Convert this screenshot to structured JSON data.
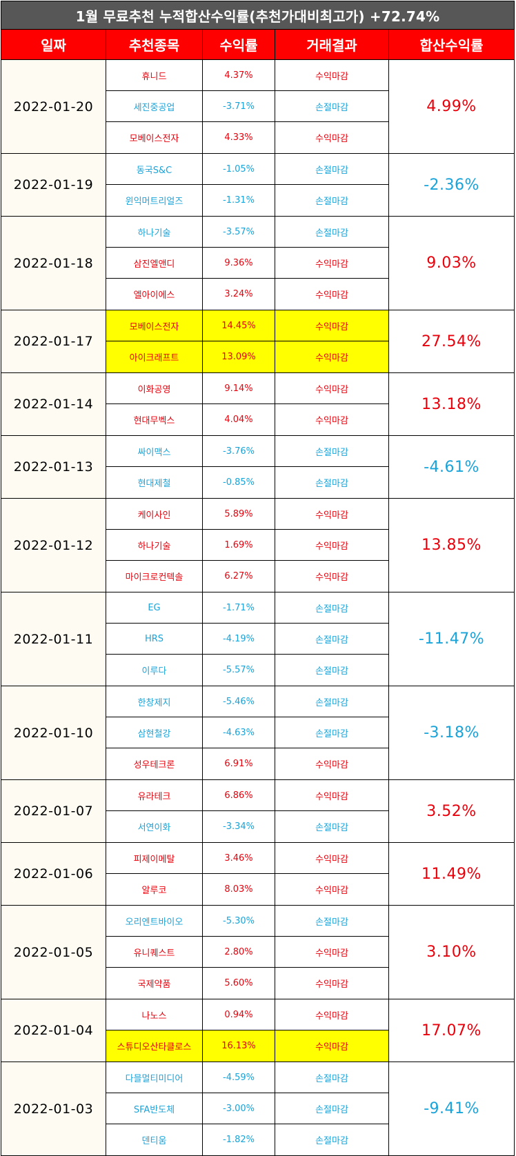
{
  "title": "1월 무료추천 누적합산수익률(추천가대비최고가) +72.74%",
  "headers": {
    "date": "일짜",
    "name": "추천종목",
    "rate": "수익률",
    "result": "거래결과",
    "total": "합산수익률"
  },
  "colors": {
    "title_bg": "#575757",
    "header_bg": "#ff0000",
    "positive": "#e8000b",
    "negative": "#1aa3d9",
    "highlight": "#ffff00",
    "date_bg": "#fefcf2"
  },
  "groups": [
    {
      "date": "2022-01-20",
      "total": "4.99%",
      "total_sign": "pos",
      "rows": [
        {
          "name": "휴니드",
          "rate": "4.37%",
          "result": "수익마감",
          "sign": "pos",
          "hl": false
        },
        {
          "name": "세진중공업",
          "rate": "-3.71%",
          "result": "손절마감",
          "sign": "neg",
          "hl": false
        },
        {
          "name": "모베이스전자",
          "rate": "4.33%",
          "result": "수익마감",
          "sign": "pos",
          "hl": false
        }
      ]
    },
    {
      "date": "2022-01-19",
      "total": "-2.36%",
      "total_sign": "neg",
      "rows": [
        {
          "name": "동국S&C",
          "rate": "-1.05%",
          "result": "손절마감",
          "sign": "neg",
          "hl": false
        },
        {
          "name": "윈익머트리얼즈",
          "rate": "-1.31%",
          "result": "손절마감",
          "sign": "neg",
          "hl": false
        }
      ]
    },
    {
      "date": "2022-01-18",
      "total": "9.03%",
      "total_sign": "pos",
      "rows": [
        {
          "name": "하나기술",
          "rate": "-3.57%",
          "result": "손절마감",
          "sign": "neg",
          "hl": false
        },
        {
          "name": "삼진엘앤디",
          "rate": "9.36%",
          "result": "수익마감",
          "sign": "pos",
          "hl": false
        },
        {
          "name": "엘아이에스",
          "rate": "3.24%",
          "result": "수익마감",
          "sign": "pos",
          "hl": false
        }
      ]
    },
    {
      "date": "2022-01-17",
      "total": "27.54%",
      "total_sign": "pos",
      "rows": [
        {
          "name": "모베이스전자",
          "rate": "14.45%",
          "result": "수익마감",
          "sign": "pos",
          "hl": true
        },
        {
          "name": "아이크래프트",
          "rate": "13.09%",
          "result": "수익마감",
          "sign": "pos",
          "hl": true
        }
      ]
    },
    {
      "date": "2022-01-14",
      "total": "13.18%",
      "total_sign": "pos",
      "rows": [
        {
          "name": "이화공영",
          "rate": "9.14%",
          "result": "수익마감",
          "sign": "pos",
          "hl": false
        },
        {
          "name": "현대무벡스",
          "rate": "4.04%",
          "result": "수익마감",
          "sign": "pos",
          "hl": false
        }
      ]
    },
    {
      "date": "2022-01-13",
      "total": "-4.61%",
      "total_sign": "neg",
      "rows": [
        {
          "name": "싸이맥스",
          "rate": "-3.76%",
          "result": "손절마감",
          "sign": "neg",
          "hl": false
        },
        {
          "name": "현대제철",
          "rate": "-0.85%",
          "result": "손절마감",
          "sign": "neg",
          "hl": false
        }
      ]
    },
    {
      "date": "2022-01-12",
      "total": "13.85%",
      "total_sign": "pos",
      "rows": [
        {
          "name": "케이사인",
          "rate": "5.89%",
          "result": "수익마감",
          "sign": "pos",
          "hl": false
        },
        {
          "name": "하나기술",
          "rate": "1.69%",
          "result": "수익마감",
          "sign": "pos",
          "hl": false
        },
        {
          "name": "마이크로컨텍솔",
          "rate": "6.27%",
          "result": "수익마감",
          "sign": "pos",
          "hl": false
        }
      ]
    },
    {
      "date": "2022-01-11",
      "total": "-11.47%",
      "total_sign": "neg",
      "rows": [
        {
          "name": "EG",
          "rate": "-1.71%",
          "result": "손절마감",
          "sign": "neg",
          "hl": false
        },
        {
          "name": "HRS",
          "rate": "-4.19%",
          "result": "손절마감",
          "sign": "neg",
          "hl": false
        },
        {
          "name": "이루다",
          "rate": "-5.57%",
          "result": "손절마감",
          "sign": "neg",
          "hl": false
        }
      ]
    },
    {
      "date": "2022-01-10",
      "total": "-3.18%",
      "total_sign": "neg",
      "rows": [
        {
          "name": "한창제지",
          "rate": "-5.46%",
          "result": "손절마감",
          "sign": "neg",
          "hl": false
        },
        {
          "name": "삼현철강",
          "rate": "-4.63%",
          "result": "손절마감",
          "sign": "neg",
          "hl": false
        },
        {
          "name": "성우테크론",
          "rate": "6.91%",
          "result": "수익마감",
          "sign": "pos",
          "hl": false
        }
      ]
    },
    {
      "date": "2022-01-07",
      "total": "3.52%",
      "total_sign": "pos",
      "rows": [
        {
          "name": "유라테크",
          "rate": "6.86%",
          "result": "수익마감",
          "sign": "pos",
          "hl": false
        },
        {
          "name": "서연이화",
          "rate": "-3.34%",
          "result": "손절마감",
          "sign": "neg",
          "hl": false
        }
      ]
    },
    {
      "date": "2022-01-06",
      "total": "11.49%",
      "total_sign": "pos",
      "rows": [
        {
          "name": "피제이메탈",
          "rate": "3.46%",
          "result": "수익마감",
          "sign": "pos",
          "hl": false
        },
        {
          "name": "알루코",
          "rate": "8.03%",
          "result": "수익마감",
          "sign": "pos",
          "hl": false
        }
      ]
    },
    {
      "date": "2022-01-05",
      "total": "3.10%",
      "total_sign": "pos",
      "rows": [
        {
          "name": "오리엔트바이오",
          "rate": "-5.30%",
          "result": "손절마감",
          "sign": "neg",
          "hl": false
        },
        {
          "name": "유니퀘스트",
          "rate": "2.80%",
          "result": "수익마감",
          "sign": "pos",
          "hl": false
        },
        {
          "name": "국제약품",
          "rate": "5.60%",
          "result": "수익마감",
          "sign": "pos",
          "hl": false
        }
      ]
    },
    {
      "date": "2022-01-04",
      "total": "17.07%",
      "total_sign": "pos",
      "rows": [
        {
          "name": "나노스",
          "rate": "0.94%",
          "result": "수익마감",
          "sign": "pos",
          "hl": false
        },
        {
          "name": "스튜디오산타클로스",
          "rate": "16.13%",
          "result": "수익마감",
          "sign": "pos",
          "hl": true
        }
      ]
    },
    {
      "date": "2022-01-03",
      "total": "-9.41%",
      "total_sign": "neg",
      "rows": [
        {
          "name": "다믈멀티미디어",
          "rate": "-4.59%",
          "result": "손절마감",
          "sign": "neg",
          "hl": false
        },
        {
          "name": "SFA반도체",
          "rate": "-3.00%",
          "result": "손절마감",
          "sign": "neg",
          "hl": false
        },
        {
          "name": "덴티움",
          "rate": "-1.82%",
          "result": "손절마감",
          "sign": "neg",
          "hl": false
        }
      ]
    }
  ]
}
